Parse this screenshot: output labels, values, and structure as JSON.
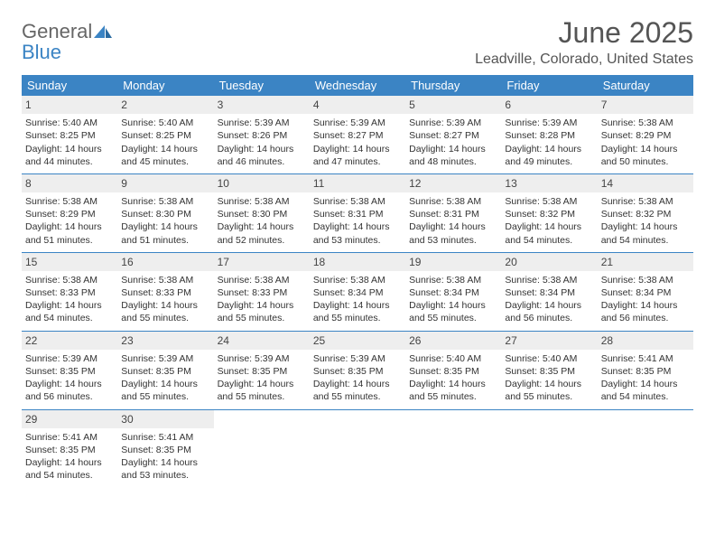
{
  "logo": {
    "word1": "General",
    "word2": "Blue"
  },
  "title": "June 2025",
  "location": "Leadville, Colorado, United States",
  "colors": {
    "header_bg": "#3b84c4",
    "header_text": "#ffffff",
    "daynum_bg": "#eeeeee",
    "rule": "#3b84c4",
    "body_text": "#333333",
    "title_text": "#555555"
  },
  "dayheaders": [
    "Sunday",
    "Monday",
    "Tuesday",
    "Wednesday",
    "Thursday",
    "Friday",
    "Saturday"
  ],
  "weeks": [
    [
      {
        "n": "1",
        "sr": "Sunrise: 5:40 AM",
        "ss": "Sunset: 8:25 PM",
        "dl": "Daylight: 14 hours and 44 minutes."
      },
      {
        "n": "2",
        "sr": "Sunrise: 5:40 AM",
        "ss": "Sunset: 8:25 PM",
        "dl": "Daylight: 14 hours and 45 minutes."
      },
      {
        "n": "3",
        "sr": "Sunrise: 5:39 AM",
        "ss": "Sunset: 8:26 PM",
        "dl": "Daylight: 14 hours and 46 minutes."
      },
      {
        "n": "4",
        "sr": "Sunrise: 5:39 AM",
        "ss": "Sunset: 8:27 PM",
        "dl": "Daylight: 14 hours and 47 minutes."
      },
      {
        "n": "5",
        "sr": "Sunrise: 5:39 AM",
        "ss": "Sunset: 8:27 PM",
        "dl": "Daylight: 14 hours and 48 minutes."
      },
      {
        "n": "6",
        "sr": "Sunrise: 5:39 AM",
        "ss": "Sunset: 8:28 PM",
        "dl": "Daylight: 14 hours and 49 minutes."
      },
      {
        "n": "7",
        "sr": "Sunrise: 5:38 AM",
        "ss": "Sunset: 8:29 PM",
        "dl": "Daylight: 14 hours and 50 minutes."
      }
    ],
    [
      {
        "n": "8",
        "sr": "Sunrise: 5:38 AM",
        "ss": "Sunset: 8:29 PM",
        "dl": "Daylight: 14 hours and 51 minutes."
      },
      {
        "n": "9",
        "sr": "Sunrise: 5:38 AM",
        "ss": "Sunset: 8:30 PM",
        "dl": "Daylight: 14 hours and 51 minutes."
      },
      {
        "n": "10",
        "sr": "Sunrise: 5:38 AM",
        "ss": "Sunset: 8:30 PM",
        "dl": "Daylight: 14 hours and 52 minutes."
      },
      {
        "n": "11",
        "sr": "Sunrise: 5:38 AM",
        "ss": "Sunset: 8:31 PM",
        "dl": "Daylight: 14 hours and 53 minutes."
      },
      {
        "n": "12",
        "sr": "Sunrise: 5:38 AM",
        "ss": "Sunset: 8:31 PM",
        "dl": "Daylight: 14 hours and 53 minutes."
      },
      {
        "n": "13",
        "sr": "Sunrise: 5:38 AM",
        "ss": "Sunset: 8:32 PM",
        "dl": "Daylight: 14 hours and 54 minutes."
      },
      {
        "n": "14",
        "sr": "Sunrise: 5:38 AM",
        "ss": "Sunset: 8:32 PM",
        "dl": "Daylight: 14 hours and 54 minutes."
      }
    ],
    [
      {
        "n": "15",
        "sr": "Sunrise: 5:38 AM",
        "ss": "Sunset: 8:33 PM",
        "dl": "Daylight: 14 hours and 54 minutes."
      },
      {
        "n": "16",
        "sr": "Sunrise: 5:38 AM",
        "ss": "Sunset: 8:33 PM",
        "dl": "Daylight: 14 hours and 55 minutes."
      },
      {
        "n": "17",
        "sr": "Sunrise: 5:38 AM",
        "ss": "Sunset: 8:33 PM",
        "dl": "Daylight: 14 hours and 55 minutes."
      },
      {
        "n": "18",
        "sr": "Sunrise: 5:38 AM",
        "ss": "Sunset: 8:34 PM",
        "dl": "Daylight: 14 hours and 55 minutes."
      },
      {
        "n": "19",
        "sr": "Sunrise: 5:38 AM",
        "ss": "Sunset: 8:34 PM",
        "dl": "Daylight: 14 hours and 55 minutes."
      },
      {
        "n": "20",
        "sr": "Sunrise: 5:38 AM",
        "ss": "Sunset: 8:34 PM",
        "dl": "Daylight: 14 hours and 56 minutes."
      },
      {
        "n": "21",
        "sr": "Sunrise: 5:38 AM",
        "ss": "Sunset: 8:34 PM",
        "dl": "Daylight: 14 hours and 56 minutes."
      }
    ],
    [
      {
        "n": "22",
        "sr": "Sunrise: 5:39 AM",
        "ss": "Sunset: 8:35 PM",
        "dl": "Daylight: 14 hours and 56 minutes."
      },
      {
        "n": "23",
        "sr": "Sunrise: 5:39 AM",
        "ss": "Sunset: 8:35 PM",
        "dl": "Daylight: 14 hours and 55 minutes."
      },
      {
        "n": "24",
        "sr": "Sunrise: 5:39 AM",
        "ss": "Sunset: 8:35 PM",
        "dl": "Daylight: 14 hours and 55 minutes."
      },
      {
        "n": "25",
        "sr": "Sunrise: 5:39 AM",
        "ss": "Sunset: 8:35 PM",
        "dl": "Daylight: 14 hours and 55 minutes."
      },
      {
        "n": "26",
        "sr": "Sunrise: 5:40 AM",
        "ss": "Sunset: 8:35 PM",
        "dl": "Daylight: 14 hours and 55 minutes."
      },
      {
        "n": "27",
        "sr": "Sunrise: 5:40 AM",
        "ss": "Sunset: 8:35 PM",
        "dl": "Daylight: 14 hours and 55 minutes."
      },
      {
        "n": "28",
        "sr": "Sunrise: 5:41 AM",
        "ss": "Sunset: 8:35 PM",
        "dl": "Daylight: 14 hours and 54 minutes."
      }
    ],
    [
      {
        "n": "29",
        "sr": "Sunrise: 5:41 AM",
        "ss": "Sunset: 8:35 PM",
        "dl": "Daylight: 14 hours and 54 minutes."
      },
      {
        "n": "30",
        "sr": "Sunrise: 5:41 AM",
        "ss": "Sunset: 8:35 PM",
        "dl": "Daylight: 14 hours and 53 minutes."
      },
      {
        "empty": true
      },
      {
        "empty": true
      },
      {
        "empty": true
      },
      {
        "empty": true
      },
      {
        "empty": true
      }
    ]
  ]
}
